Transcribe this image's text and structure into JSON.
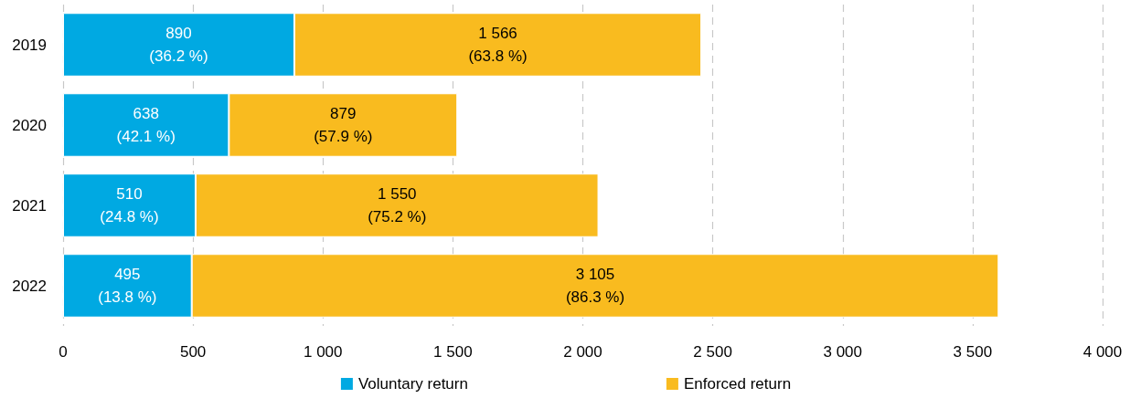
{
  "chart_data": {
    "type": "bar",
    "orientation": "horizontal",
    "stacked": true,
    "categories": [
      "2019",
      "2020",
      "2021",
      "2022"
    ],
    "series": [
      {
        "name": "Voluntary return",
        "color": "#00a9e2",
        "values": [
          890,
          638,
          510,
          495
        ],
        "value_labels": [
          "890\n(36.2 %)",
          "638\n(42.1 %)",
          "510\n(24.8 %)",
          "495\n(13.8 %)"
        ]
      },
      {
        "name": "Enforced return",
        "color": "#f9bb1f",
        "values": [
          1566,
          879,
          1550,
          3105
        ],
        "value_labels": [
          "1 566\n(63.8 %)",
          "879\n(57.9 %)",
          "1 550\n(75.2 %)",
          "3 105\n(86.3 %)"
        ]
      }
    ],
    "xlim": [
      0,
      4000
    ],
    "xticks": [
      0,
      500,
      {
        "value": 1000,
        "label": "1 000"
      },
      {
        "value": 1500,
        "label": "1 500"
      },
      {
        "value": 2000,
        "label": "2 000"
      },
      {
        "value": 2500,
        "label": "2 500"
      },
      {
        "value": 3000,
        "label": "3 000"
      },
      {
        "value": 3500,
        "label": "3 500"
      },
      {
        "value": 4000,
        "label": "4 000"
      }
    ],
    "grid": "x",
    "legend": "bottom"
  }
}
